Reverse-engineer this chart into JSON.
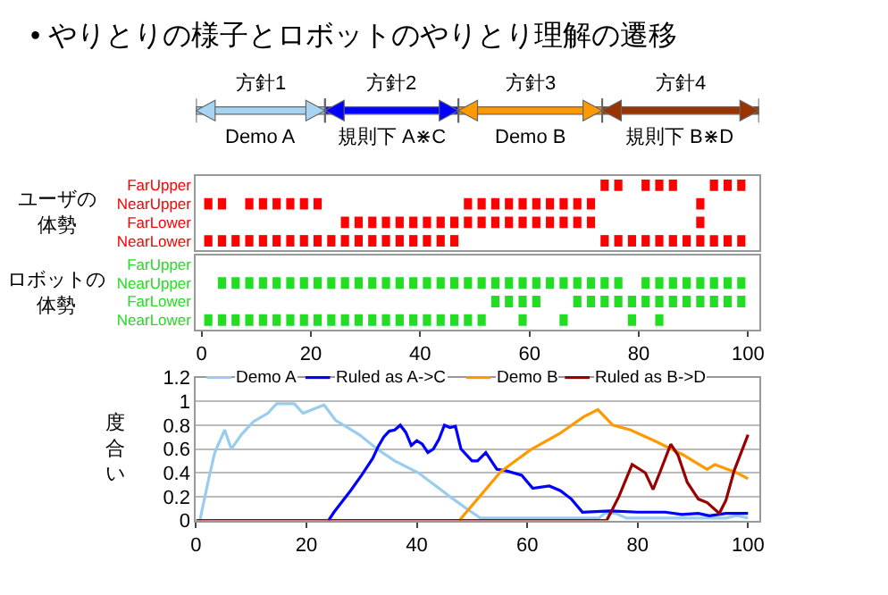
{
  "chart_data": [
    {
      "type": "bar",
      "orientation": "horizontal",
      "title": "• やりとりの様子とロボットのやりとり理解の遷移",
      "xlim": [
        -1,
        102
      ],
      "tick_labels": false,
      "categories": [
        null
      ],
      "annotations": [
        "Demo A",
        "規則下 A⋇C",
        "Demo B",
        "規則下 B⋇D"
      ],
      "series": [
        {
          "name": "方針1",
          "color": "#a6d4f2",
          "base": [
            -1
          ],
          "values": [
            23.6
          ]
        },
        {
          "name": "方針2",
          "color": "#0000ff",
          "base": [
            22.6
          ],
          "values": [
            24.4
          ]
        },
        {
          "name": "方針3",
          "color": "#ff9900",
          "base": [
            47
          ],
          "values": [
            26.3
          ]
        },
        {
          "name": "方針4",
          "color": "#993300",
          "base": [
            73.3
          ],
          "values": [
            28.7
          ]
        }
      ]
    },
    {
      "type": "bar",
      "orientation": "horizontal",
      "ylabel": "ユーザの体勢",
      "xlim": [
        -1,
        102
      ],
      "tick_labels": "y",
      "categories": [
        "FarUpper",
        "NearUpper",
        "FarLower",
        "NearLower"
      ],
      "series": [
        {
          "color": "#ff0000",
          "base": [
            null,
            0.5,
            null,
            0.5
          ],
          "values": [
            null,
            1.5,
            null,
            1.5
          ]
        },
        {
          "color": "#ff0000",
          "base": [
            null,
            3,
            null,
            3
          ],
          "values": [
            null,
            1.5,
            null,
            1.5
          ]
        },
        {
          "color": "#ff0000",
          "base": [
            null,
            null,
            null,
            5.5
          ],
          "values": [
            null,
            null,
            null,
            1.5
          ]
        },
        {
          "color": "#ff0000",
          "base": [
            null,
            8,
            null,
            8
          ],
          "values": [
            null,
            1.5,
            null,
            1.5
          ]
        },
        {
          "color": "#ff0000",
          "base": [
            null,
            10.5,
            null,
            10.5
          ],
          "values": [
            null,
            1.5,
            null,
            1.5
          ]
        },
        {
          "color": "#ff0000",
          "base": [
            null,
            13,
            null,
            13
          ],
          "values": [
            null,
            1.5,
            null,
            1.5
          ]
        },
        {
          "color": "#ff0000",
          "base": [
            null,
            15.5,
            null,
            15.5
          ],
          "values": [
            null,
            1.5,
            null,
            1.5
          ]
        },
        {
          "color": "#ff0000",
          "base": [
            null,
            18,
            null,
            18
          ],
          "values": [
            null,
            1.5,
            null,
            1.5
          ]
        },
        {
          "color": "#ff0000",
          "base": [
            null,
            20.5,
            null,
            20.5
          ],
          "values": [
            null,
            1.5,
            null,
            1.5
          ]
        },
        {
          "color": "#ff0000",
          "base": [
            null,
            null,
            null,
            23
          ],
          "values": [
            null,
            null,
            null,
            1.5
          ]
        },
        {
          "color": "#ff0000",
          "base": [
            null,
            null,
            25.5,
            25.5
          ],
          "values": [
            null,
            null,
            1.5,
            1.5
          ]
        },
        {
          "color": "#ff0000",
          "base": [
            null,
            null,
            28,
            28
          ],
          "values": [
            null,
            null,
            1.5,
            1.5
          ]
        },
        {
          "color": "#ff0000",
          "base": [
            null,
            null,
            30.5,
            30.5
          ],
          "values": [
            null,
            null,
            1.5,
            1.5
          ]
        },
        {
          "color": "#ff0000",
          "base": [
            null,
            null,
            33,
            33
          ],
          "values": [
            null,
            null,
            1.5,
            1.5
          ]
        },
        {
          "color": "#ff0000",
          "base": [
            null,
            null,
            35.5,
            35.5
          ],
          "values": [
            null,
            null,
            1.5,
            1.5
          ]
        },
        {
          "color": "#ff0000",
          "base": [
            null,
            null,
            38,
            38
          ],
          "values": [
            null,
            null,
            1.5,
            1.5
          ]
        },
        {
          "color": "#ff0000",
          "base": [
            null,
            null,
            40.5,
            40.5
          ],
          "values": [
            null,
            null,
            1.5,
            1.5
          ]
        },
        {
          "color": "#ff0000",
          "base": [
            null,
            null,
            43,
            43
          ],
          "values": [
            null,
            null,
            1.5,
            1.5
          ]
        },
        {
          "color": "#ff0000",
          "base": [
            null,
            null,
            45.5,
            45.5
          ],
          "values": [
            null,
            null,
            1.5,
            1.5
          ]
        },
        {
          "color": "#ff0000",
          "base": [
            null,
            48,
            48,
            null
          ],
          "values": [
            null,
            1.5,
            1.5,
            null
          ]
        },
        {
          "color": "#ff0000",
          "base": [
            null,
            50.5,
            50.5,
            null
          ],
          "values": [
            null,
            1.5,
            1.5,
            null
          ]
        },
        {
          "color": "#ff0000",
          "base": [
            null,
            53,
            53,
            null
          ],
          "values": [
            null,
            1.5,
            1.5,
            null
          ]
        },
        {
          "color": "#ff0000",
          "base": [
            null,
            55.5,
            55.5,
            null
          ],
          "values": [
            null,
            1.5,
            1.5,
            null
          ]
        },
        {
          "color": "#ff0000",
          "base": [
            null,
            58,
            58,
            null
          ],
          "values": [
            null,
            1.5,
            1.5,
            null
          ]
        },
        {
          "color": "#ff0000",
          "base": [
            null,
            60.5,
            60.5,
            null
          ],
          "values": [
            null,
            1.5,
            1.5,
            null
          ]
        },
        {
          "color": "#ff0000",
          "base": [
            null,
            63,
            63,
            null
          ],
          "values": [
            null,
            1.5,
            1.5,
            null
          ]
        },
        {
          "color": "#ff0000",
          "base": [
            null,
            65.5,
            65.5,
            null
          ],
          "values": [
            null,
            1.5,
            1.5,
            null
          ]
        },
        {
          "color": "#ff0000",
          "base": [
            null,
            68,
            68,
            null
          ],
          "values": [
            null,
            1.5,
            1.5,
            null
          ]
        },
        {
          "color": "#ff0000",
          "base": [
            null,
            70.5,
            70.5,
            null
          ],
          "values": [
            null,
            1.5,
            1.5,
            null
          ]
        },
        {
          "color": "#ff0000",
          "base": [
            73,
            null,
            null,
            73
          ],
          "values": [
            1.5,
            null,
            null,
            1.5
          ]
        },
        {
          "color": "#ff0000",
          "base": [
            75.5,
            null,
            null,
            75.5
          ],
          "values": [
            1.5,
            null,
            null,
            1.5
          ]
        },
        {
          "color": "#ff0000",
          "base": [
            null,
            null,
            null,
            78
          ],
          "values": [
            null,
            null,
            null,
            1.5
          ]
        },
        {
          "color": "#ff0000",
          "base": [
            80.5,
            null,
            null,
            80.5
          ],
          "values": [
            1.5,
            null,
            null,
            1.5
          ]
        },
        {
          "color": "#ff0000",
          "base": [
            83,
            null,
            null,
            83
          ],
          "values": [
            1.5,
            null,
            null,
            1.5
          ]
        },
        {
          "color": "#ff0000",
          "base": [
            85.5,
            null,
            null,
            85.5
          ],
          "values": [
            1.5,
            null,
            null,
            1.5
          ]
        },
        {
          "color": "#ff0000",
          "base": [
            null,
            null,
            null,
            88
          ],
          "values": [
            null,
            null,
            null,
            1.5
          ]
        },
        {
          "color": "#ff0000",
          "base": [
            null,
            90.5,
            90.5,
            90.5
          ],
          "values": [
            null,
            1.5,
            1.5,
            1.5
          ]
        },
        {
          "color": "#ff0000",
          "base": [
            93,
            null,
            null,
            93
          ],
          "values": [
            1.5,
            null,
            null,
            1.5
          ]
        },
        {
          "color": "#ff0000",
          "base": [
            95.5,
            null,
            null,
            95.5
          ],
          "values": [
            1.5,
            null,
            null,
            1.5
          ]
        },
        {
          "color": "#ff0000",
          "base": [
            98,
            null,
            null,
            98
          ],
          "values": [
            1.5,
            null,
            null,
            1.5
          ]
        }
      ]
    },
    {
      "type": "bar",
      "orientation": "horizontal",
      "ylabel": "ロボットの体勢",
      "xlim": [
        -1,
        102
      ],
      "xticks": [
        0,
        20,
        40,
        60,
        80,
        100
      ],
      "categories": [
        "FarUpper",
        "NearUpper",
        "FarLower",
        "NearLower"
      ],
      "series": [
        {
          "color": "#22dd22",
          "base": [
            null,
            null,
            null,
            0.5
          ],
          "values": [
            null,
            null,
            null,
            1.5
          ]
        },
        {
          "color": "#22dd22",
          "base": [
            null,
            3,
            null,
            3
          ],
          "values": [
            null,
            1.5,
            null,
            1.5
          ]
        },
        {
          "color": "#22dd22",
          "base": [
            null,
            5.5,
            null,
            5.5
          ],
          "values": [
            null,
            1.5,
            null,
            1.5
          ]
        },
        {
          "color": "#22dd22",
          "base": [
            null,
            8,
            null,
            8
          ],
          "values": [
            null,
            1.5,
            null,
            1.5
          ]
        },
        {
          "color": "#22dd22",
          "base": [
            null,
            10.5,
            null,
            10.5
          ],
          "values": [
            null,
            1.5,
            null,
            1.5
          ]
        },
        {
          "color": "#22dd22",
          "base": [
            null,
            13,
            null,
            13
          ],
          "values": [
            null,
            1.5,
            null,
            1.5
          ]
        },
        {
          "color": "#22dd22",
          "base": [
            null,
            15.5,
            null,
            15.5
          ],
          "values": [
            null,
            1.5,
            null,
            1.5
          ]
        },
        {
          "color": "#22dd22",
          "base": [
            null,
            18,
            null,
            18
          ],
          "values": [
            null,
            1.5,
            null,
            1.5
          ]
        },
        {
          "color": "#22dd22",
          "base": [
            null,
            20.5,
            null,
            20.5
          ],
          "values": [
            null,
            1.5,
            null,
            1.5
          ]
        },
        {
          "color": "#22dd22",
          "base": [
            null,
            23,
            null,
            23
          ],
          "values": [
            null,
            1.5,
            null,
            1.5
          ]
        },
        {
          "color": "#22dd22",
          "base": [
            null,
            25.5,
            null,
            25.5
          ],
          "values": [
            null,
            1.5,
            null,
            1.5
          ]
        },
        {
          "color": "#22dd22",
          "base": [
            null,
            28,
            null,
            28
          ],
          "values": [
            null,
            1.5,
            null,
            1.5
          ]
        },
        {
          "color": "#22dd22",
          "base": [
            null,
            30.5,
            null,
            30.5
          ],
          "values": [
            null,
            1.5,
            null,
            1.5
          ]
        },
        {
          "color": "#22dd22",
          "base": [
            null,
            33,
            null,
            33
          ],
          "values": [
            null,
            1.5,
            null,
            1.5
          ]
        },
        {
          "color": "#22dd22",
          "base": [
            null,
            35.5,
            null,
            35.5
          ],
          "values": [
            null,
            1.5,
            null,
            1.5
          ]
        },
        {
          "color": "#22dd22",
          "base": [
            null,
            38,
            null,
            38
          ],
          "values": [
            null,
            1.5,
            null,
            1.5
          ]
        },
        {
          "color": "#22dd22",
          "base": [
            null,
            40.5,
            null,
            40.5
          ],
          "values": [
            null,
            1.5,
            null,
            1.5
          ]
        },
        {
          "color": "#22dd22",
          "base": [
            null,
            43,
            null,
            43
          ],
          "values": [
            null,
            1.5,
            null,
            1.5
          ]
        },
        {
          "color": "#22dd22",
          "base": [
            null,
            45.5,
            null,
            45.5
          ],
          "values": [
            null,
            1.5,
            null,
            1.5
          ]
        },
        {
          "color": "#22dd22",
          "base": [
            null,
            48,
            null,
            48
          ],
          "values": [
            null,
            1.5,
            null,
            1.5
          ]
        },
        {
          "color": "#22dd22",
          "base": [
            null,
            50.5,
            null,
            50.5
          ],
          "values": [
            null,
            1.5,
            null,
            1.5
          ]
        },
        {
          "color": "#22dd22",
          "base": [
            null,
            53,
            53,
            null
          ],
          "values": [
            null,
            1.5,
            1.5,
            null
          ]
        },
        {
          "color": "#22dd22",
          "base": [
            null,
            55.5,
            55.5,
            null
          ],
          "values": [
            null,
            1.5,
            1.5,
            null
          ]
        },
        {
          "color": "#22dd22",
          "base": [
            null,
            58,
            58,
            58
          ],
          "values": [
            null,
            1.5,
            1.5,
            1.5
          ]
        },
        {
          "color": "#22dd22",
          "base": [
            null,
            60.5,
            60.5,
            null
          ],
          "values": [
            null,
            1.5,
            1.5,
            null
          ]
        },
        {
          "color": "#22dd22",
          "base": [
            null,
            63,
            null,
            null
          ],
          "values": [
            null,
            1.5,
            null,
            null
          ]
        },
        {
          "color": "#22dd22",
          "base": [
            null,
            65.5,
            null,
            65.5
          ],
          "values": [
            null,
            1.5,
            null,
            1.5
          ]
        },
        {
          "color": "#22dd22",
          "base": [
            null,
            68,
            68,
            null
          ],
          "values": [
            null,
            1.5,
            1.5,
            null
          ]
        },
        {
          "color": "#22dd22",
          "base": [
            null,
            70.5,
            70.5,
            null
          ],
          "values": [
            null,
            1.5,
            1.5,
            null
          ]
        },
        {
          "color": "#22dd22",
          "base": [
            null,
            73,
            73,
            null
          ],
          "values": [
            null,
            1.5,
            1.5,
            null
          ]
        },
        {
          "color": "#22dd22",
          "base": [
            null,
            75.5,
            75.5,
            null
          ],
          "values": [
            null,
            1.5,
            1.5,
            null
          ]
        },
        {
          "color": "#22dd22",
          "base": [
            null,
            null,
            78,
            78
          ],
          "values": [
            null,
            null,
            1.5,
            1.5
          ]
        },
        {
          "color": "#22dd22",
          "base": [
            null,
            80.5,
            80.5,
            null
          ],
          "values": [
            null,
            1.5,
            1.5,
            null
          ]
        },
        {
          "color": "#22dd22",
          "base": [
            null,
            83,
            83,
            83
          ],
          "values": [
            null,
            1.5,
            1.5,
            1.5
          ]
        },
        {
          "color": "#22dd22",
          "base": [
            null,
            85.5,
            85.5,
            null
          ],
          "values": [
            null,
            1.5,
            1.5,
            null
          ]
        },
        {
          "color": "#22dd22",
          "base": [
            null,
            88,
            88,
            null
          ],
          "values": [
            null,
            1.5,
            1.5,
            null
          ]
        },
        {
          "color": "#22dd22",
          "base": [
            null,
            90.5,
            90.5,
            null
          ],
          "values": [
            null,
            1.5,
            1.5,
            null
          ]
        },
        {
          "color": "#22dd22",
          "base": [
            null,
            93,
            93,
            null
          ],
          "values": [
            null,
            1.5,
            1.5,
            null
          ]
        },
        {
          "color": "#22dd22",
          "base": [
            null,
            95.5,
            95.5,
            null
          ],
          "values": [
            null,
            1.5,
            1.5,
            null
          ]
        },
        {
          "color": "#22dd22",
          "base": [
            null,
            98,
            98,
            null
          ],
          "values": [
            null,
            1.5,
            1.5,
            null
          ]
        }
      ]
    },
    {
      "type": "line",
      "ylabel": "度合い",
      "xlim": [
        0,
        102
      ],
      "xticks": [
        0,
        20,
        40,
        60,
        80,
        100
      ],
      "ylim": [
        0,
        1.2
      ],
      "yticks": [
        0,
        0.2,
        0.4,
        0.6,
        0.8,
        1,
        1.2
      ],
      "grid": "y",
      "legend": "top",
      "series": [
        {
          "name": "Demo A",
          "color": "#99ccee",
          "x": [
            0.7,
            2.4,
            3.4,
            5.2,
            6.4,
            8.2,
            10.4,
            13,
            14.6,
            17.8,
            19.4,
            23.2,
            25.3,
            29.6,
            32.8,
            36,
            40.3,
            44.6,
            46,
            49,
            51.5,
            73,
            74,
            76,
            78,
            96,
            98,
            100
          ],
          "values": [
            0,
            0.37,
            0.57,
            0.76,
            0.6,
            0.72,
            0.83,
            0.9,
            0.98,
            0.98,
            0.9,
            0.97,
            0.84,
            0.72,
            0.6,
            0.5,
            0.4,
            0.25,
            0.2,
            0.1,
            0.02,
            0.02,
            0.06,
            0.06,
            0.02,
            0.02,
            0.04,
            0.02
          ]
        },
        {
          "name": "Ruled as A->C",
          "color": "#0000ff",
          "x": [
            24,
            25,
            28,
            30,
            32,
            33,
            34,
            35,
            36,
            37,
            38,
            39,
            40,
            41,
            42,
            43,
            44,
            45,
            46,
            47,
            48,
            50,
            51,
            52.5,
            54.5,
            56,
            59,
            61,
            64,
            66,
            68,
            70,
            75,
            80,
            85,
            88,
            91,
            93,
            96,
            100
          ],
          "values": [
            0,
            0.07,
            0.25,
            0.38,
            0.52,
            0.62,
            0.7,
            0.75,
            0.76,
            0.8,
            0.74,
            0.63,
            0.67,
            0.64,
            0.57,
            0.6,
            0.68,
            0.8,
            0.78,
            0.79,
            0.6,
            0.5,
            0.5,
            0.57,
            0.43,
            0.42,
            0.38,
            0.27,
            0.29,
            0.25,
            0.18,
            0.07,
            0.08,
            0.07,
            0.07,
            0.05,
            0.06,
            0.04,
            0.06,
            0.06
          ]
        },
        {
          "name": "Demo B",
          "color": "#ff9900",
          "x": [
            47.7,
            55.2,
            60.5,
            65.9,
            70.2,
            72.8,
            75.5,
            78.7,
            83,
            88.3,
            92.6,
            94,
            98,
            100
          ],
          "values": [
            0,
            0.41,
            0.59,
            0.73,
            0.87,
            0.93,
            0.8,
            0.76,
            0.67,
            0.55,
            0.43,
            0.47,
            0.4,
            0.35
          ]
        },
        {
          "name": "Ruled as B->D",
          "color": "#990000",
          "x": [
            0,
            74.4,
            76.6,
            79,
            81.4,
            82.8,
            84,
            86,
            87.3,
            89,
            91,
            92.6,
            94.8,
            96,
            97.5,
            99,
            100
          ],
          "values": [
            0,
            0,
            0.2,
            0.47,
            0.4,
            0.26,
            0.4,
            0.64,
            0.55,
            0.32,
            0.18,
            0.15,
            0.06,
            0.17,
            0.42,
            0.6,
            0.72
          ]
        }
      ]
    }
  ]
}
